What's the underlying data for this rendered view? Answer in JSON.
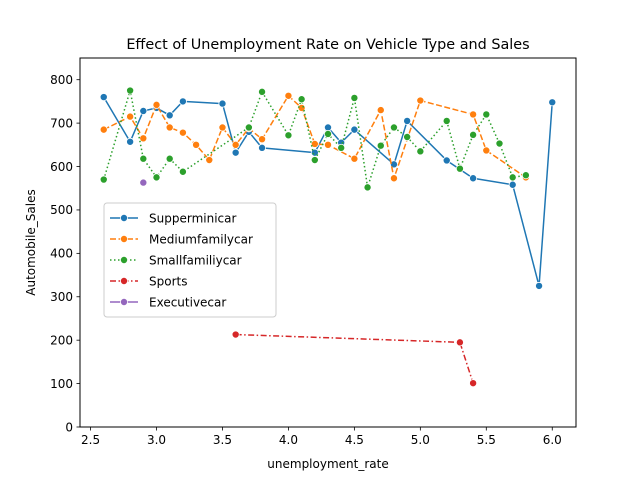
{
  "chart_data": {
    "type": "line",
    "title": "Effect of Unemployment Rate on Vehicle Type and Sales",
    "xlabel": "unemployment_rate",
    "ylabel": "Automobile_Sales",
    "xlim": [
      2.42,
      6.18
    ],
    "ylim": [
      0,
      850
    ],
    "xticks": [
      "2.5",
      "3.0",
      "3.5",
      "4.0",
      "4.5",
      "5.0",
      "5.5",
      "6.0"
    ],
    "yticks": [
      "0",
      "100",
      "200",
      "300",
      "400",
      "500",
      "600",
      "700",
      "800"
    ],
    "grid": false,
    "legend_position": "center-left",
    "series": [
      {
        "name": "Supperminicar",
        "color": "#1f77b4",
        "dash": "solid",
        "x": [
          2.6,
          2.8,
          2.9,
          3.0,
          3.1,
          3.2,
          3.5,
          3.6,
          3.7,
          3.8,
          4.2,
          4.3,
          4.4,
          4.5,
          4.8,
          4.9,
          5.2,
          5.4,
          5.7,
          5.9,
          6.0
        ],
        "y": [
          760,
          657,
          728,
          735,
          718,
          750,
          745,
          632,
          680,
          643,
          632,
          690,
          655,
          685,
          605,
          705,
          614,
          573,
          558,
          325,
          748
        ]
      },
      {
        "name": "Mediumfamilycar",
        "color": "#ff7f0e",
        "dash": "dashed",
        "x": [
          2.6,
          2.8,
          2.9,
          3.0,
          3.1,
          3.2,
          3.3,
          3.4,
          3.5,
          3.6,
          3.7,
          3.8,
          4.0,
          4.1,
          4.2,
          4.3,
          4.5,
          4.7,
          4.8,
          5.0,
          5.4,
          5.5,
          5.8
        ],
        "y": [
          685,
          715,
          665,
          742,
          690,
          678,
          650,
          615,
          690,
          650,
          688,
          663,
          763,
          735,
          652,
          650,
          618,
          730,
          573,
          752,
          720,
          637,
          575
        ]
      },
      {
        "name": "Smallfamiliycar",
        "color": "#2ca02c",
        "dash": "dotted",
        "x": [
          2.6,
          2.8,
          2.9,
          3.0,
          3.1,
          3.2,
          3.7,
          3.8,
          4.0,
          4.1,
          4.2,
          4.3,
          4.4,
          4.5,
          4.6,
          4.7,
          4.8,
          4.9,
          5.0,
          5.2,
          5.3,
          5.4,
          5.5,
          5.6,
          5.7,
          5.8
        ],
        "y": [
          570,
          775,
          618,
          575,
          618,
          588,
          690,
          772,
          672,
          755,
          615,
          675,
          643,
          758,
          552,
          648,
          690,
          668,
          635,
          705,
          595,
          673,
          720,
          653,
          575,
          580
        ]
      },
      {
        "name": "Sports",
        "color": "#d62728",
        "dash": "dashdot",
        "x": [
          3.6,
          5.3,
          5.4
        ],
        "y": [
          213,
          195,
          101
        ]
      },
      {
        "name": "Executivecar",
        "color": "#9467bd",
        "dash": "solid",
        "x": [
          2.9
        ],
        "y": [
          563
        ]
      }
    ]
  }
}
